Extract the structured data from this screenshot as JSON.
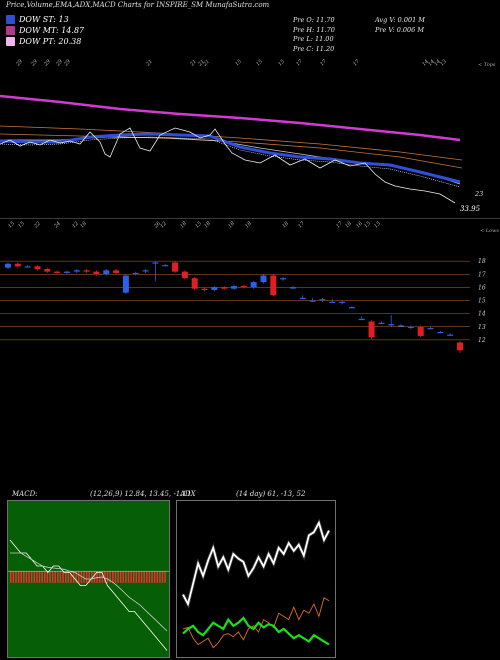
{
  "header": {
    "title": "Price,Volume,EMA,ADX,MACD Charts for INSPIRE_SM MunafaSutra.com",
    "legend": [
      {
        "label": "DOW ST: 13",
        "color": "#2f4fd8"
      },
      {
        "label": "DOW MT: 14.87",
        "color": "#b03a8a"
      },
      {
        "label": "DOW PT: 20.38",
        "color": "#f2b7ee"
      }
    ],
    "ohlc": {
      "open": "Pre  O: 11.70",
      "high": "Pre  H: 11.70",
      "low": "Pre  L: 11.00",
      "close": "Pre  C: 11.20"
    },
    "volume": {
      "avg": "Avg V: 0.001 M",
      "pre": "Pre  V: 0.006  M"
    }
  },
  "top_panel": {
    "date_labels": [
      "29",
      "29",
      "29",
      "29",
      "29",
      "21",
      "21",
      "21",
      "21",
      "15",
      "15",
      "15",
      "17",
      "17",
      "17",
      "14",
      "14",
      "14",
      "13"
    ],
    "upper_right": "< Tops",
    "price_label_1": "23",
    "price_label_2": "33.95"
  },
  "candle_panel": {
    "date_labels": [
      "15",
      "15",
      "22",
      "24",
      "12",
      "18",
      "26",
      "12",
      "18",
      "15",
      "18",
      "18",
      "18",
      "18",
      "17",
      "17",
      "18",
      "16",
      "15",
      "15"
    ],
    "upper_right": "< Lows",
    "price_ticks": [
      "18",
      "17",
      "16",
      "15",
      "14",
      "13",
      "12"
    ]
  },
  "macd_panel": {
    "label": "MACD:",
    "params": "(12,26,9) 12.84,  13.45,  -1.11"
  },
  "adx_panel": {
    "label": "ADX",
    "params": "(14  day) 61,  -13,  52"
  },
  "chart_data": {
    "type": "line",
    "candles": {
      "ylim": [
        11,
        19
      ],
      "open": [
        17.5,
        17.8,
        17.6,
        17.6,
        17.4,
        17.2,
        17.1,
        17.2,
        17.3,
        17.2,
        17.0,
        17.3,
        15.6,
        17.1,
        17.3,
        17.9,
        17.7,
        17.9,
        17.2,
        16.7,
        15.9,
        15.8,
        16.0,
        15.9,
        16.1,
        16.0,
        16.4,
        16.9,
        16.7,
        16.0,
        15.2,
        15.0,
        15.1,
        14.9,
        14.9,
        14.5,
        13.6,
        13.4,
        13.3,
        13.2,
        13.1,
        13.0,
        13.0,
        12.9,
        12.6,
        12.4,
        11.8
      ],
      "close": [
        17.8,
        17.6,
        17.6,
        17.4,
        17.2,
        17.1,
        17.2,
        17.3,
        17.2,
        17.0,
        17.3,
        17.1,
        16.9,
        17.1,
        17.3,
        17.9,
        17.7,
        17.2,
        16.7,
        15.9,
        15.8,
        16.0,
        15.9,
        16.1,
        16.0,
        16.4,
        16.9,
        15.4,
        16.7,
        16.0,
        15.2,
        15.0,
        15.1,
        14.9,
        14.9,
        14.5,
        13.6,
        12.2,
        13.3,
        13.2,
        13.1,
        13.0,
        12.3,
        12.9,
        12.6,
        12.4,
        11.2
      ],
      "high": [
        17.9,
        17.9,
        17.7,
        17.7,
        17.5,
        17.3,
        17.3,
        17.4,
        17.4,
        17.3,
        17.4,
        17.4,
        17.0,
        17.2,
        17.4,
        18.0,
        17.8,
        18.0,
        17.3,
        16.8,
        16.0,
        16.1,
        16.1,
        16.2,
        16.2,
        16.5,
        17.0,
        17.0,
        16.8,
        16.1,
        15.4,
        15.2,
        15.2,
        15.1,
        15.0,
        14.6,
        13.8,
        13.5,
        13.4,
        13.9,
        13.2,
        13.1,
        13.1,
        13.0,
        12.7,
        12.5,
        11.9
      ],
      "low": [
        17.4,
        17.5,
        17.5,
        17.3,
        17.1,
        17.0,
        17.0,
        17.1,
        17.1,
        16.9,
        16.9,
        17.0,
        15.5,
        16.9,
        17.1,
        16.5,
        17.6,
        17.1,
        16.6,
        15.8,
        15.7,
        15.7,
        15.8,
        15.8,
        15.9,
        15.9,
        16.3,
        15.3,
        16.5,
        15.9,
        15.1,
        14.9,
        14.9,
        14.8,
        14.7,
        14.4,
        13.5,
        12.1,
        13.2,
        13.0,
        13.0,
        12.8,
        12.2,
        12.8,
        12.5,
        12.3,
        11.0
      ]
    },
    "macd": {
      "series": [
        {
          "name": "MACD",
          "values": [
            0.6,
            0.5,
            0.4,
            0.4,
            0.3,
            0.2,
            0.2,
            0.1,
            0.2,
            0.2,
            0.1,
            0.1,
            0.0,
            -0.1,
            -0.1,
            0.0,
            0.1,
            0.1,
            -0.1,
            -0.2,
            -0.3,
            -0.4,
            -0.5,
            -0.5,
            -0.6,
            -0.7,
            -0.8,
            -0.9,
            -1.0,
            -1.1
          ]
        },
        {
          "name": "Signal",
          "values": [
            0.4,
            0.4,
            0.4,
            0.35,
            0.3,
            0.25,
            0.2,
            0.18,
            0.17,
            0.16,
            0.15,
            0.12,
            0.1,
            0.05,
            0.0,
            0.0,
            0.02,
            0.03,
            0.0,
            -0.05,
            -0.12,
            -0.2,
            -0.28,
            -0.34,
            -0.4,
            -0.48,
            -0.56,
            -0.64,
            -0.72,
            -0.8
          ]
        }
      ]
    },
    "adx": {
      "series": [
        {
          "name": "+DI",
          "values": [
            40,
            34,
            47,
            60,
            52,
            62,
            70,
            58,
            64,
            56,
            66,
            63,
            61,
            52,
            57,
            64,
            58,
            66,
            60,
            70,
            66,
            73,
            68,
            72,
            65,
            78,
            80,
            86,
            75,
            81
          ]
        },
        {
          "name": "-DI",
          "values": [
            18,
            19,
            12,
            8,
            10,
            12,
            6,
            9,
            14,
            15,
            13,
            16,
            11,
            18,
            20,
            16,
            24,
            22,
            19,
            28,
            26,
            24,
            32,
            24,
            30,
            28,
            34,
            26,
            38,
            36
          ]
        },
        {
          "name": "ADX",
          "values": [
            15,
            18,
            20,
            16,
            14,
            18,
            22,
            20,
            18,
            24,
            20,
            22,
            25,
            20,
            18,
            22,
            19,
            21,
            20,
            16,
            18,
            15,
            12,
            14,
            12,
            10,
            14,
            12,
            10,
            8
          ]
        }
      ]
    }
  }
}
